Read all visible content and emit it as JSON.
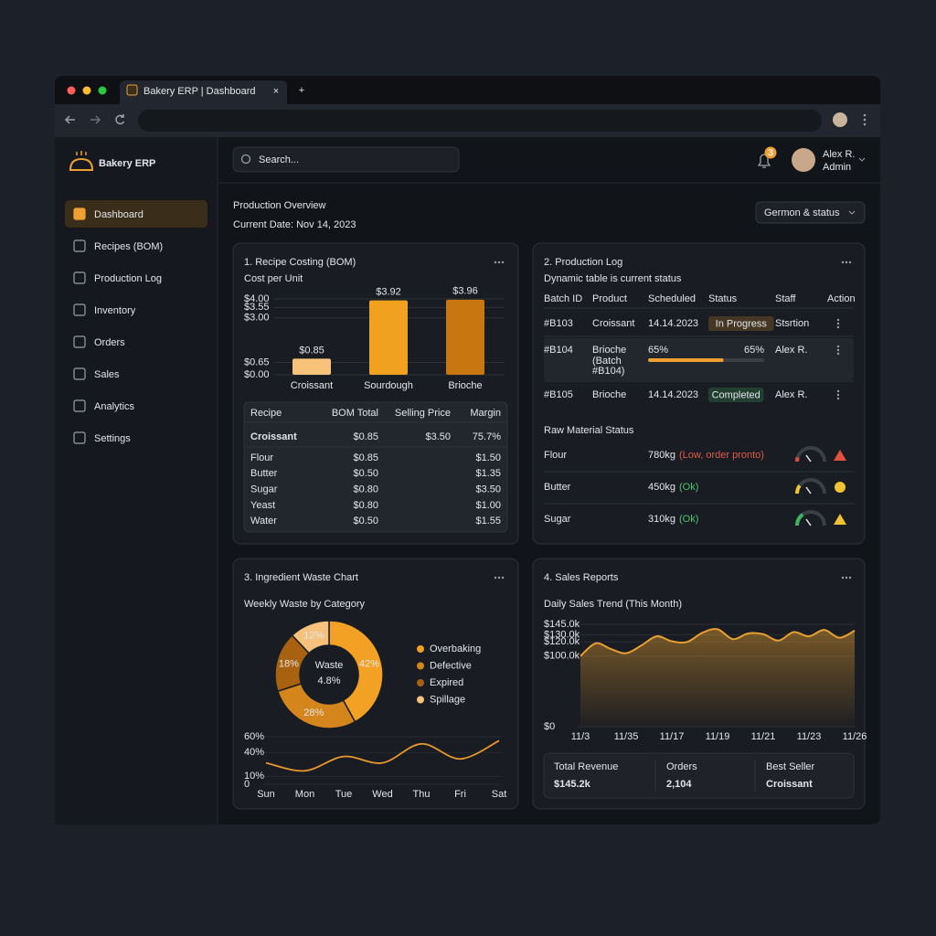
{
  "browser": {
    "tab_title": "Bakery ERP | Dashboard",
    "tab_close": "×",
    "new_tab": "+"
  },
  "sidebar": {
    "brand": "Bakery ERP",
    "active": 0,
    "nav": [
      "Dashboard",
      "Recipes (BOM)",
      "Production Log",
      "Inventory",
      "Orders",
      "Sales",
      "Analytics",
      "Settings"
    ]
  },
  "topbar": {
    "search_placeholder": "Search...",
    "notifications": "3",
    "user_name": "Alex R.",
    "user_role": "Admin"
  },
  "header": {
    "title": "Production Overview",
    "date": "Current Date: Nov 14, 2023",
    "filter": "Germon & status"
  },
  "recipe_costing": {
    "title": "1. Recipe Costing (BOM)",
    "subtitle": "Cost per Unit",
    "chart": {
      "type": "bar",
      "categories": [
        "Croissant",
        "Sourdough",
        "Brioche"
      ],
      "values": [
        0.85,
        3.92,
        3.96
      ],
      "value_labels": [
        "$0.85",
        "$3.92",
        "$3.96"
      ],
      "colors": [
        "#f7c27a",
        "#f0a11f",
        "#c8760f"
      ],
      "ylim": [
        0,
        4
      ],
      "yticks": [
        {
          "value": 4,
          "label": "$4.00"
        },
        {
          "value": 3.55,
          "label": "$3.55"
        },
        {
          "value": 3,
          "label": "$3.00"
        },
        {
          "value": 0.65,
          "label": "$0.65"
        },
        {
          "value": 0,
          "label": "$0.00"
        }
      ],
      "grid": true
    },
    "table": {
      "columns": [
        "Recipe",
        "BOM Total",
        "Selling Price",
        "Margin"
      ],
      "summary": [
        "Croissant",
        "$0.85",
        "$3.50",
        "75.7%"
      ],
      "rows": [
        [
          "Flour",
          "$0.85",
          "$1.50"
        ],
        [
          "Butter",
          "$0.50",
          "$1.35"
        ],
        [
          "Sugar",
          "$0.80",
          "$3.50"
        ],
        [
          "Yeast",
          "$0.80",
          "$1.00"
        ],
        [
          "Water",
          "$0.50",
          "$1.55"
        ]
      ]
    }
  },
  "production_log": {
    "title": "2. Production Log",
    "subtitle": "Dynamic table is current status",
    "columns": [
      "Batch ID",
      "Product",
      "Scheduled",
      "Status",
      "Staff",
      "Action"
    ],
    "rows": [
      {
        "batch": "#B103",
        "product": "Croissant",
        "scheduled": "14.14.2023",
        "status": "In Progress",
        "status_color": "#e59a2c",
        "staff": "Stsrtion"
      },
      {
        "batch": "#B104",
        "product": "Brioche",
        "note": [
          "(Batch",
          "#B104)"
        ],
        "progress": 65,
        "progress_label": "65%",
        "staff": "Alex R."
      },
      {
        "batch": "#B105",
        "product": "Brioche",
        "scheduled": "14.14.2023",
        "status": "Completed",
        "status_color": "#45c06a",
        "staff": "Alex R."
      }
    ],
    "materials_title": "Raw Material Status",
    "materials": [
      {
        "name": "Flour",
        "qty": "780kg",
        "state": "(Low, order pronto)",
        "state_color": "#e05a48",
        "gauge_color": "#d9503f"
      },
      {
        "name": "Butter",
        "qty": "450kg",
        "state": "(Ok)",
        "state_color": "#4cc46e",
        "gauge_color": "#f1c232"
      },
      {
        "name": "Sugar",
        "qty": "310kg",
        "state": "(Ok)",
        "state_color": "#4cc46e",
        "gauge_color": "#3fb35f"
      }
    ]
  },
  "waste": {
    "title": "3. Ingredient Waste Chart",
    "subtitle": "Weekly Waste by Category",
    "donut": {
      "type": "pie",
      "center_label": "Waste",
      "center_value": "4.8%",
      "categories": [
        "Overbaking",
        "Defective",
        "Expired",
        "Spillage"
      ],
      "values": [
        42,
        28,
        18,
        12
      ],
      "value_labels": [
        "42%",
        "28%",
        "18%",
        "12%"
      ],
      "colors": [
        "#f2a124",
        "#d4861c",
        "#a8620f",
        "#f4c27c"
      ]
    },
    "line": {
      "type": "line",
      "categories": [
        "Sun",
        "Mon",
        "Tue",
        "Wed",
        "Thu",
        "Fri",
        "Sat"
      ],
      "values": [
        27,
        17,
        35,
        27,
        51,
        32,
        55
      ],
      "color": "#e8992a",
      "ylim": [
        0,
        60
      ],
      "yticks": [
        {
          "value": 60,
          "label": "60%"
        },
        {
          "value": 40,
          "label": "40%"
        },
        {
          "value": 10,
          "label": "10%"
        },
        0
      ]
    }
  },
  "sales": {
    "title": "4. Sales Reports",
    "subtitle": "Daily Sales Trend (This Month)",
    "chart": {
      "type": "area",
      "categories": [
        "11/3",
        null,
        null,
        "11/35",
        null,
        null,
        "11/17",
        null,
        null,
        "11/19",
        null,
        null,
        "11/21",
        null,
        null,
        "11/23",
        null,
        null,
        "11/26"
      ],
      "values": [
        100000,
        118000,
        110000,
        104000,
        115000,
        128000,
        121000,
        120000,
        133000,
        138000,
        124000,
        132000,
        131000,
        122000,
        134000,
        128000,
        137000,
        126000,
        136000
      ],
      "color": "#e8a030",
      "ylim": [
        0,
        145000
      ],
      "yticks": [
        {
          "value": 145000,
          "label": "$145.0k"
        },
        {
          "value": 130000,
          "label": "$130.0k"
        },
        {
          "value": 120000,
          "label": "$120.0k"
        },
        {
          "value": 100000,
          "label": "$100.0k"
        },
        {
          "value": 0,
          "label": "$0"
        }
      ],
      "grid": true
    },
    "summary": [
      {
        "label": "Total Revenue",
        "value": "$145.2k"
      },
      {
        "label": "Orders",
        "value": "2,104"
      },
      {
        "label": "Best Seller",
        "value": "Croissant"
      }
    ]
  }
}
